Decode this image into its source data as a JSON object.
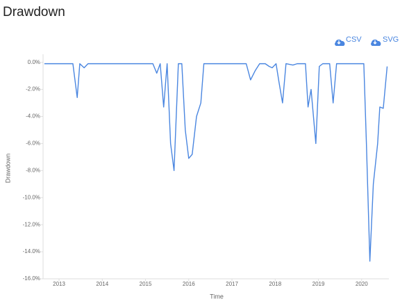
{
  "chart_data": {
    "type": "line",
    "title": "Drawdown",
    "x_label": "Time",
    "y_label": "Drawdown",
    "x": [
      2012.66,
      2013.32,
      2013.42,
      2013.48,
      2013.58,
      2013.67,
      2015.17,
      2015.26,
      2015.34,
      2015.42,
      2015.5,
      2015.58,
      2015.66,
      2015.76,
      2015.84,
      2015.92,
      2016.0,
      2016.08,
      2016.18,
      2016.28,
      2016.35,
      2017.33,
      2017.43,
      2017.54,
      2017.64,
      2017.77,
      2017.86,
      2017.93,
      2018.02,
      2018.09,
      2018.17,
      2018.25,
      2018.41,
      2018.51,
      2018.7,
      2018.76,
      2018.83,
      2018.94,
      2019.02,
      2019.1,
      2019.26,
      2019.34,
      2019.42,
      2020.05,
      2020.11,
      2020.19,
      2020.27,
      2020.37,
      2020.42,
      2020.5,
      2020.59
    ],
    "series": [
      {
        "name": "Drawdown",
        "color": "#4a86e0",
        "values": [
          -0.1,
          -0.1,
          -2.6,
          -0.1,
          -0.4,
          -0.1,
          -0.1,
          -0.8,
          -0.1,
          -3.3,
          -0.1,
          -6,
          -8.0,
          -0.1,
          -0.1,
          -5,
          -7.1,
          -6.8,
          -4,
          -3,
          -0.1,
          -0.1,
          -1.3,
          -0.6,
          -0.1,
          -0.1,
          -0.3,
          -0.4,
          -0.1,
          -1.5,
          -3.0,
          -0.1,
          -0.2,
          -0.1,
          -0.1,
          -3.3,
          -2.0,
          -6.0,
          -0.3,
          -0.1,
          -0.1,
          -3.0,
          -0.1,
          -0.1,
          -6,
          -14.7,
          -9,
          -6,
          -3.3,
          -3.4,
          -0.3
        ]
      }
    ],
    "xlim": [
      2012.63,
      2020.63
    ],
    "ylim": [
      -16,
      0.6
    ],
    "xticks": [
      2013,
      2014,
      2015,
      2016,
      2017,
      2018,
      2019,
      2020
    ],
    "yticks": [
      {
        "value": 0,
        "label": "0.0%"
      },
      {
        "value": -2,
        "label": "-2.0%"
      },
      {
        "value": -4,
        "label": "-4.0%"
      },
      {
        "value": -6,
        "label": "-6.0%"
      },
      {
        "value": -8,
        "label": "-8.0%"
      },
      {
        "value": -10,
        "label": "-10.0%"
      },
      {
        "value": -12,
        "label": "-12.0%"
      },
      {
        "value": -14,
        "label": "-14.0%"
      },
      {
        "value": -16,
        "label": "-16.0%"
      }
    ]
  },
  "toolbar": {
    "buttons": [
      "CSV",
      "SVG"
    ]
  }
}
